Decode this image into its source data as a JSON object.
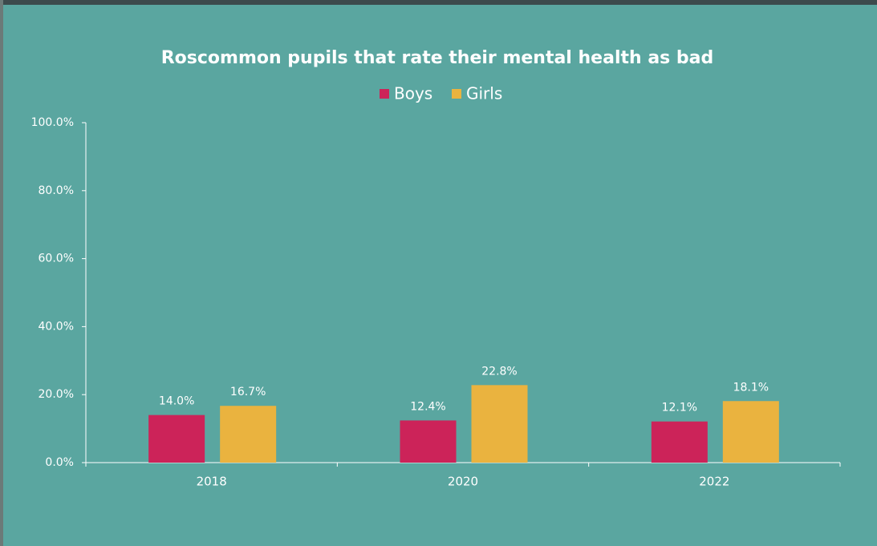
{
  "chart_data": {
    "type": "bar",
    "title": "Roscommon pupils that rate their mental health as bad",
    "categories": [
      "2018",
      "2020",
      "2022"
    ],
    "series": [
      {
        "name": "Boys",
        "color": "#cc2359",
        "values": [
          14.0,
          12.4,
          12.1
        ],
        "value_labels": [
          "14.0%",
          "12.4%",
          "12.1%"
        ]
      },
      {
        "name": "Girls",
        "color": "#eab33f",
        "values": [
          16.7,
          22.8,
          18.1
        ],
        "value_labels": [
          "16.7%",
          "22.8%",
          "18.1%"
        ]
      }
    ],
    "ylim": [
      0,
      100
    ],
    "yticks": [
      {
        "value": 0,
        "label": "0.0%"
      },
      {
        "value": 20,
        "label": "20.0%"
      },
      {
        "value": 40,
        "label": "40.0%"
      },
      {
        "value": 60,
        "label": "60.0%"
      },
      {
        "value": 80,
        "label": "80.0%"
      },
      {
        "value": 100,
        "label": "100.0%"
      }
    ],
    "legend": "top",
    "grid": false
  }
}
